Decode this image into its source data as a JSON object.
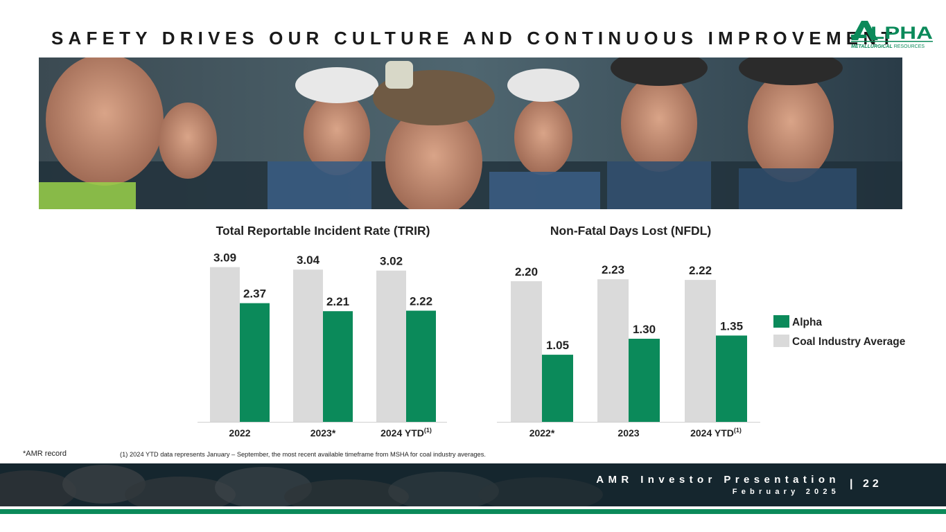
{
  "slide": {
    "title": "SAFETY DRIVES OUR CULTURE AND CONTINUOUS IMPROVEMENT",
    "logo": {
      "text": "LPHA",
      "subtitle_bold": "METALLURGICAL",
      "subtitle_light": " RESOURCES"
    },
    "photo_icon": "miners-photo"
  },
  "colors": {
    "alpha": "#0b8a5a",
    "industry": "#dadada",
    "footer": "#15262e"
  },
  "chart_data": [
    {
      "type": "bar",
      "title": "Total Reportable Incident Rate (TRIR)",
      "categories": [
        "2022",
        "2023*",
        "2024 YTD"
      ],
      "category_superscripts": [
        "",
        "",
        "(1)"
      ],
      "ylim": [
        0,
        3.6
      ],
      "series": [
        {
          "name": "Coal Industry Average",
          "values": [
            3.09,
            3.04,
            3.02
          ],
          "labels": [
            "3.09",
            "3.04",
            "3.02"
          ]
        },
        {
          "name": "Alpha",
          "values": [
            2.37,
            2.21,
            2.22
          ],
          "labels": [
            "2.37",
            "2.21",
            "2.22"
          ]
        }
      ]
    },
    {
      "type": "bar",
      "title": "Non-Fatal Days Lost (NFDL)",
      "categories": [
        "2022*",
        "2023",
        "2024 YTD"
      ],
      "category_superscripts": [
        "",
        "",
        "(1)"
      ],
      "ylim": [
        0,
        2.4
      ],
      "series": [
        {
          "name": "Coal Industry Average",
          "values": [
            2.2,
            2.23,
            2.22
          ],
          "labels": [
            "2.20",
            "2.23",
            "2.22"
          ]
        },
        {
          "name": "Alpha",
          "values": [
            1.05,
            1.3,
            1.35
          ],
          "labels": [
            "1.05",
            "1.30",
            "1.35"
          ]
        }
      ]
    }
  ],
  "legend": [
    {
      "name": "Alpha",
      "color": "#0b8a5a"
    },
    {
      "name": "Coal Industry Average",
      "color": "#dadada"
    }
  ],
  "footnotes": {
    "amr_record": "*AMR record",
    "note": "(1) 2024 YTD data represents January – September, the most recent available timeframe from MSHA for coal industry averages."
  },
  "footer": {
    "presentation": "AMR Investor Presentation",
    "date": "February 2025",
    "separator": "|",
    "page": "22"
  }
}
